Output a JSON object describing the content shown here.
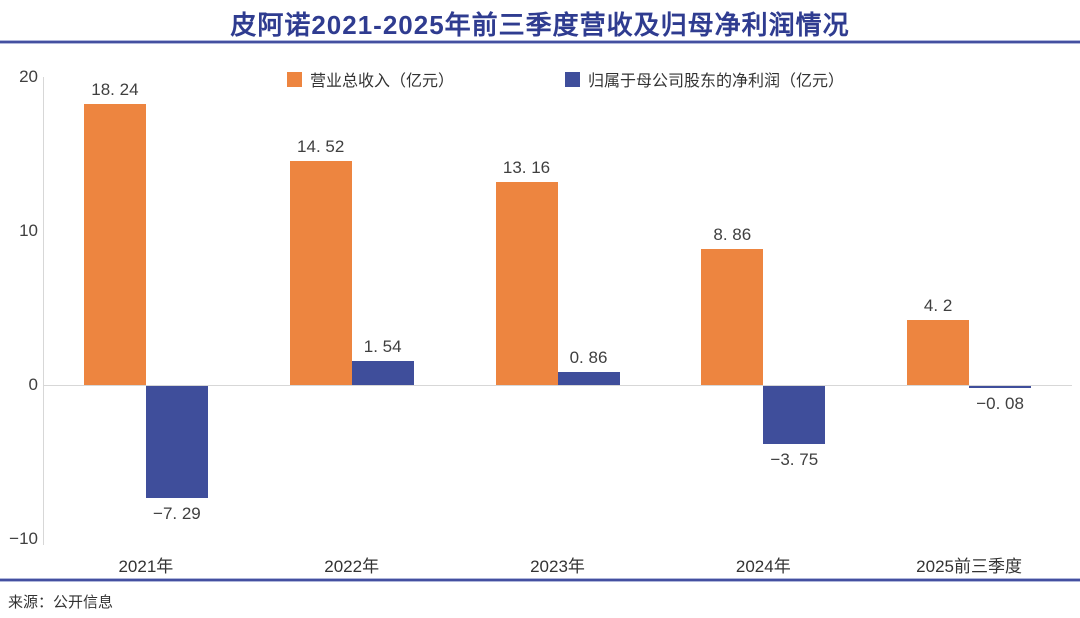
{
  "title": "皮阿诺2021-2025年前三季度营收及归母净利润情况",
  "source": "来源：公开信息",
  "colors": {
    "revenue": "#ED8540",
    "profit": "#3F4E9B",
    "title_blue": "#2F3C90",
    "divider_blue": "#4450A0",
    "axis_gray": "#D7D7D7",
    "label_text": "#3F3F3F"
  },
  "legend": [
    {
      "label": "营业总收入（亿元）",
      "color": "#ED8540"
    },
    {
      "label": "归属于母公司股东的净利润（亿元）",
      "color": "#3F4E9B"
    }
  ],
  "chart_data": {
    "type": "bar",
    "title": "皮阿诺2021-2025年前三季度营收及归母净利润情况",
    "categories": [
      "2021年",
      "2022年",
      "2023年",
      "2024年",
      "2025前三季度"
    ],
    "series": [
      {
        "name": "营业总收入（亿元）",
        "color": "#ED8540",
        "values": [
          18.24,
          14.52,
          13.16,
          8.86,
          4.2
        ],
        "labels": [
          "18. 24",
          "14. 52",
          "13. 16",
          "8. 86",
          "4. 2"
        ]
      },
      {
        "name": "归属于母公司股东的净利润（亿元）",
        "color": "#3F4E9B",
        "values": [
          -7.29,
          1.54,
          0.86,
          -3.75,
          -0.08
        ],
        "labels": [
          "−7. 29",
          "1. 54",
          "0. 86",
          "−3. 75",
          "−0. 08"
        ]
      }
    ],
    "xlabel": "",
    "ylabel": "",
    "ylim": [
      -10,
      20
    ],
    "yticks": [
      20,
      10,
      0,
      -10
    ],
    "ytick_labels": [
      "20",
      "10",
      "0",
      "−10"
    ],
    "grid": false,
    "legend_position": "top"
  }
}
